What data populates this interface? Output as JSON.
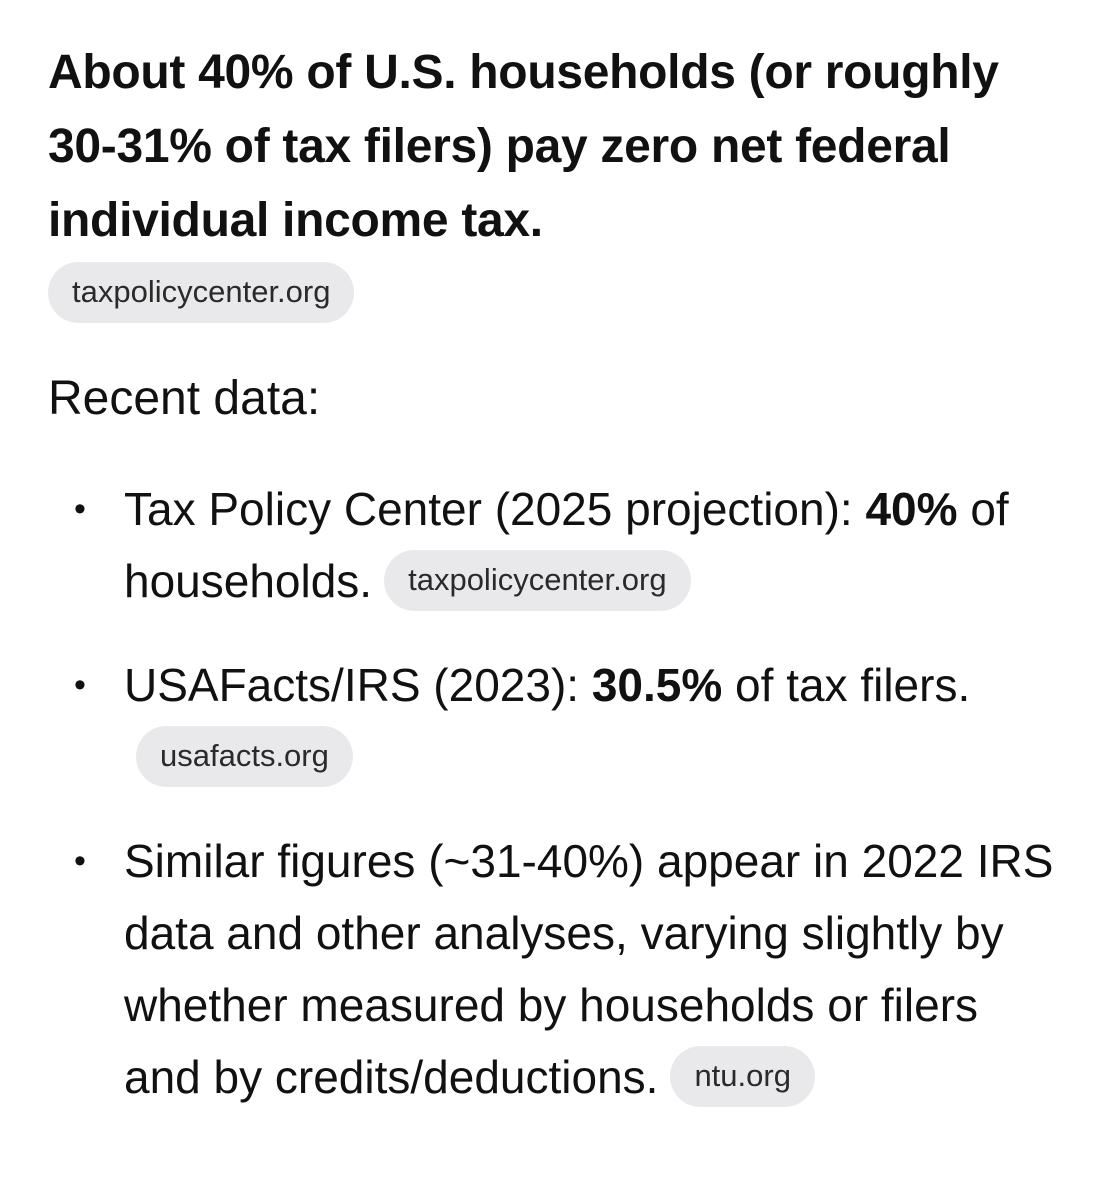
{
  "heading": {
    "text": "About 40% of U.S. households (or roughly 30-31% of tax filers) pay zero net federal individual income tax.",
    "source": "taxpolicycenter.org"
  },
  "intro": "Recent data:",
  "items": [
    {
      "before": "Tax Policy Center (2025 projection): ",
      "bold": "40%",
      "after": " of households.",
      "source": "taxpolicycenter.org"
    },
    {
      "before": "USAFacts/IRS (2023): ",
      "bold": "30.5%",
      "after": " of tax filers.",
      "source": "usafacts.org"
    },
    {
      "before": "Similar figures (~31-40%) appear in 2022 IRS data and other analyses, varying slightly by whether measured by households or filers and by credits/deductions.",
      "source": "ntu.org"
    }
  ],
  "bullet_glyph": "•"
}
